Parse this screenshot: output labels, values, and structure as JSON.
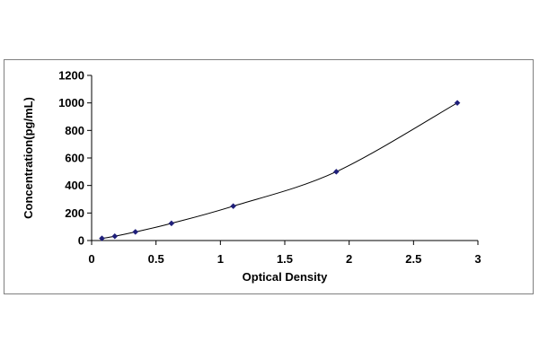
{
  "chart_data": {
    "type": "scatter",
    "title": "",
    "xlabel": "Optical Density",
    "ylabel": "Concentration(pg/mL)",
    "xlim": [
      0,
      3
    ],
    "ylim": [
      0,
      1200
    ],
    "xticks": [
      0,
      0.5,
      1,
      1.5,
      2,
      2.5,
      3
    ],
    "yticks": [
      0,
      200,
      400,
      600,
      800,
      1000,
      1200
    ],
    "xtick_labels": [
      "0",
      "0.5",
      "1",
      "1.5",
      "2",
      "2.5",
      "3"
    ],
    "ytick_labels": [
      "0",
      "200",
      "400",
      "600",
      "800",
      "1000",
      "1200"
    ],
    "grid": false,
    "legend": "none",
    "trendline": "smooth curve through points",
    "series": [
      {
        "x": [
          0.08,
          0.18,
          0.34,
          0.62,
          1.1,
          1.9,
          2.84
        ],
        "y": [
          15.6,
          31.2,
          62.5,
          125,
          250,
          500,
          1000
        ]
      }
    ],
    "colors": {
      "marker": "#1f1f7a",
      "line": "#000000",
      "axis": "#000000",
      "frame": "#7f7f7f"
    }
  }
}
